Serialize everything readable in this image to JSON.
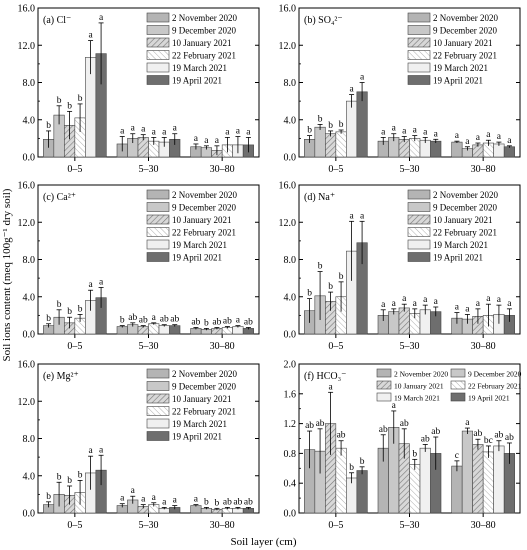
{
  "figure": {
    "ylabel": "Soil ions content (meq 100g⁻¹ dry soil)",
    "xlabel": "Soil layer (cm)"
  },
  "legend_entries": [
    "2   November 2020",
    "9   December 2020",
    "10 January 2021",
    "22 February 2021",
    "19 March 2021",
    "19 April 2021"
  ],
  "legend_entries_f": [
    "2    November 2020",
    "9    December 2020",
    "10 January 2021",
    "22 February 2021",
    "19 March 2021",
    "19 April 2021"
  ],
  "chart_data": [
    {
      "type": "bar",
      "panel": "a",
      "label": "(a) Cl⁻",
      "categories": [
        "0–5",
        "5–30",
        "30–80"
      ],
      "ylim": [
        0,
        16
      ],
      "yticks": [
        "0.0",
        "4.0",
        "8.0",
        "12.0",
        "16.0"
      ],
      "series": [
        {
          "name": "2   November 2020",
          "values": [
            1.9,
            1.4,
            1.1
          ],
          "errors": [
            0.9,
            0.8,
            0.3
          ],
          "sig": [
            "b",
            "a",
            "a"
          ]
        },
        {
          "name": "9   December 2020",
          "values": [
            4.5,
            2.0,
            1.0
          ],
          "errors": [
            1.0,
            0.5,
            0.2
          ],
          "sig": [
            "b",
            "a",
            "a"
          ]
        },
        {
          "name": "10 January 2021",
          "values": [
            3.4,
            2.1,
            0.7
          ],
          "errors": [
            1.5,
            0.3,
            0.5
          ],
          "sig": [
            "b",
            "a",
            "a"
          ]
        },
        {
          "name": "22 February 2021",
          "values": [
            4.2,
            1.7,
            1.3
          ],
          "errors": [
            1.5,
            0.4,
            0.8
          ],
          "sig": [
            "b",
            "a",
            "a"
          ]
        },
        {
          "name": "19 March 2021",
          "values": [
            10.7,
            1.6,
            1.3
          ],
          "errors": [
            1.8,
            0.5,
            0.9
          ],
          "sig": [
            "a",
            "a",
            "a"
          ]
        },
        {
          "name": "19 April 2021",
          "values": [
            11.1,
            1.9,
            1.3
          ],
          "errors": [
            3.3,
            0.6,
            0.8
          ],
          "sig": [
            "a",
            "a",
            "a"
          ]
        }
      ]
    },
    {
      "type": "bar",
      "panel": "b",
      "label": "(b) SO₄²⁻",
      "categories": [
        "0–5",
        "5–30",
        "30–80"
      ],
      "ylim": [
        0,
        16
      ],
      "yticks": [
        "0.0",
        "4.0",
        "8.0",
        "12.0",
        "16.0"
      ],
      "series": [
        {
          "name": "2   November 2020",
          "values": [
            1.9,
            1.7,
            1.6
          ],
          "errors": [
            0.4,
            0.4,
            0.1
          ],
          "sig": [
            "b",
            "a",
            "a"
          ]
        },
        {
          "name": "9   December 2020",
          "values": [
            3.2,
            2.1,
            0.9
          ],
          "errors": [
            0.3,
            0.4,
            0.2
          ],
          "sig": [
            "b",
            "a",
            "a"
          ]
        },
        {
          "name": "10 January 2021",
          "values": [
            2.5,
            1.9,
            1.3
          ],
          "errors": [
            0.3,
            0.3,
            0.2
          ],
          "sig": [
            "b",
            "a",
            "a"
          ]
        },
        {
          "name": "22 February 2021",
          "values": [
            2.7,
            2.0,
            1.5
          ],
          "errors": [
            0.2,
            0.3,
            0.3
          ],
          "sig": [
            "b",
            "a",
            "a"
          ]
        },
        {
          "name": "19 March 2021",
          "values": [
            6.0,
            1.8,
            1.4
          ],
          "errors": [
            0.7,
            0.3,
            0.2
          ],
          "sig": [
            "a",
            "a",
            "a"
          ]
        },
        {
          "name": "19 April 2021",
          "values": [
            7.0,
            1.7,
            1.1
          ],
          "errors": [
            1.0,
            0.2,
            0.1
          ],
          "sig": [
            "a",
            "a",
            "a"
          ]
        }
      ]
    },
    {
      "type": "bar",
      "panel": "c",
      "label": "(c) Ca²⁺",
      "categories": [
        "0–5",
        "5–30",
        "30–80"
      ],
      "ylim": [
        0,
        16
      ],
      "yticks": [
        "0.0",
        "4.0",
        "8.0",
        "12.0",
        "16.0"
      ],
      "series": [
        {
          "name": "2   November 2020",
          "values": [
            0.9,
            0.8,
            0.6
          ],
          "errors": [
            0.2,
            0.1,
            0.1
          ],
          "sig": [
            "b",
            "b",
            "ab"
          ]
        },
        {
          "name": "9   December 2020",
          "values": [
            1.8,
            1.0,
            0.5
          ],
          "errors": [
            0.8,
            0.2,
            0.1
          ],
          "sig": [
            "b",
            "ab",
            "b"
          ]
        },
        {
          "name": "10 January 2021",
          "values": [
            1.2,
            0.8,
            0.6
          ],
          "errors": [
            0.6,
            0.1,
            0.1
          ],
          "sig": [
            "b",
            "ab",
            "ab"
          ]
        },
        {
          "name": "22 February 2021",
          "values": [
            1.7,
            1.1,
            0.7
          ],
          "errors": [
            0.4,
            0.1,
            0.1
          ],
          "sig": [
            "b",
            "a",
            "ab"
          ]
        },
        {
          "name": "19 March 2021",
          "values": [
            3.6,
            0.9,
            0.8
          ],
          "errors": [
            1.1,
            0.1,
            0.1
          ],
          "sig": [
            "a",
            "ab",
            "a"
          ]
        },
        {
          "name": "19 April 2021",
          "values": [
            3.9,
            0.9,
            0.6
          ],
          "errors": [
            1.1,
            0.1,
            0.1
          ],
          "sig": [
            "a",
            "ab",
            "ab"
          ]
        }
      ]
    },
    {
      "type": "bar",
      "panel": "d",
      "label": "(d) Na⁺",
      "categories": [
        "0–5",
        "5–30",
        "30–80"
      ],
      "ylim": [
        0,
        16
      ],
      "yticks": [
        "0.0",
        "4.0",
        "8.0",
        "12.0",
        "16.0"
      ],
      "series": [
        {
          "name": "2   November 2020",
          "values": [
            2.5,
            2.0,
            1.7
          ],
          "errors": [
            1.3,
            0.6,
            0.6
          ],
          "sig": [
            "b",
            "a",
            "a"
          ]
        },
        {
          "name": "9   December 2020",
          "values": [
            4.1,
            2.4,
            1.6
          ],
          "errors": [
            2.6,
            0.3,
            0.5
          ],
          "sig": [
            "b",
            "a",
            "a"
          ]
        },
        {
          "name": "10 January 2021",
          "values": [
            3.5,
            2.8,
            1.9
          ],
          "errors": [
            1.0,
            0.4,
            0.8
          ],
          "sig": [
            "b",
            "a",
            "a"
          ]
        },
        {
          "name": "22 February 2021",
          "values": [
            4.0,
            2.2,
            2.0
          ],
          "errors": [
            1.6,
            0.5,
            1.2
          ],
          "sig": [
            "b",
            "a",
            "a"
          ]
        },
        {
          "name": "19 March 2021",
          "values": [
            8.9,
            2.6,
            2.1
          ],
          "errors": [
            3.2,
            0.5,
            1.0
          ],
          "sig": [
            "a",
            "a",
            "a"
          ]
        },
        {
          "name": "19 April 2021",
          "values": [
            9.8,
            2.4,
            2.0
          ],
          "errors": [
            2.3,
            0.5,
            0.7
          ],
          "sig": [
            "a",
            "a",
            "a"
          ]
        }
      ]
    },
    {
      "type": "bar",
      "panel": "e",
      "label": "(e) Mg²⁺",
      "categories": [
        "0–5",
        "5–30",
        "30–80"
      ],
      "ylim": [
        0,
        16
      ],
      "yticks": [
        "0.0",
        "4.0",
        "8.0",
        "12.0",
        "16.0"
      ],
      "series": [
        {
          "name": "2   November 2020",
          "values": [
            0.9,
            0.8,
            0.8
          ],
          "errors": [
            0.3,
            0.2,
            0.1
          ],
          "sig": [
            "b",
            "a",
            "a"
          ]
        },
        {
          "name": "9   December 2020",
          "values": [
            2.0,
            1.4,
            0.5
          ],
          "errors": [
            1.3,
            0.4,
            0.1
          ],
          "sig": [
            "b",
            "a",
            "b"
          ]
        },
        {
          "name": "10 January 2021",
          "values": [
            1.9,
            0.7,
            0.4
          ],
          "errors": [
            1.0,
            0.2,
            0.1
          ],
          "sig": [
            "b",
            "a",
            "b"
          ]
        },
        {
          "name": "22 February 2021",
          "values": [
            2.2,
            0.9,
            0.5
          ],
          "errors": [
            1.3,
            0.2,
            0.1
          ],
          "sig": [
            "b",
            "a",
            "ab"
          ]
        },
        {
          "name": "19 March 2021",
          "values": [
            4.3,
            0.5,
            0.5
          ],
          "errors": [
            1.8,
            0.1,
            0.1
          ],
          "sig": [
            "a",
            "a",
            "ab"
          ]
        },
        {
          "name": "19 April 2021",
          "values": [
            4.6,
            0.6,
            0.5
          ],
          "errors": [
            1.6,
            0.2,
            0.1
          ],
          "sig": [
            "a",
            "a",
            "ab"
          ]
        }
      ]
    },
    {
      "type": "bar",
      "panel": "f",
      "label": "(f) HCO₃⁻",
      "categories": [
        "0–5",
        "5–30",
        "30–80"
      ],
      "ylim": [
        0,
        2.0
      ],
      "yticks": [
        "0.0",
        "0.4",
        "0.8",
        "1.2",
        "1.6",
        "2.0"
      ],
      "series": [
        {
          "name": "2    November 2020",
          "values": [
            0.85,
            0.87,
            0.63
          ],
          "errors": [
            0.25,
            0.18,
            0.07
          ],
          "sig": [
            "ab",
            "ab",
            "c"
          ]
        },
        {
          "name": "9    December 2020",
          "values": [
            0.83,
            1.15,
            1.1
          ],
          "errors": [
            0.3,
            0.22,
            0.04
          ],
          "sig": [
            "ab",
            "a",
            "a"
          ]
        },
        {
          "name": "10 January 2021",
          "values": [
            1.2,
            0.93,
            0.92
          ],
          "errors": [
            0.42,
            0.2,
            0.07
          ],
          "sig": [
            "a",
            "ab",
            "ab"
          ]
        },
        {
          "name": "22 February 2021",
          "values": [
            0.87,
            0.65,
            0.82
          ],
          "errors": [
            0.1,
            0.07,
            0.08
          ],
          "sig": [
            "ab",
            "b",
            "bc"
          ]
        },
        {
          "name": "19 March 2021",
          "values": [
            0.47,
            0.87,
            0.9
          ],
          "errors": [
            0.07,
            0.05,
            0.07
          ],
          "sig": [
            "b",
            "ab",
            "ab"
          ]
        },
        {
          "name": "19 April 2021",
          "values": [
            0.57,
            0.8,
            0.8
          ],
          "errors": [
            0.05,
            0.22,
            0.14
          ],
          "sig": [
            "b",
            "ab",
            "ab"
          ]
        }
      ]
    }
  ]
}
